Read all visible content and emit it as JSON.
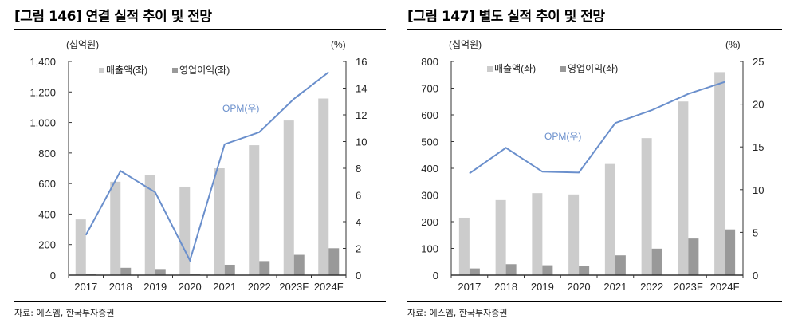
{
  "colors": {
    "revenue": "#cccccc",
    "operating_profit": "#999999",
    "opm": "#6a8fcc",
    "axis": "#333333"
  },
  "chart_data": [
    {
      "type": "bar+line",
      "title": "[그림 146] 연결 실적 추이 및 전망",
      "source": "자료: 에스엠, 한국투자증권",
      "left_unit": "(십억원)",
      "right_unit": "(%)",
      "categories": [
        "2017",
        "2018",
        "2019",
        "2020",
        "2021",
        "2022",
        "2023F",
        "2024F"
      ],
      "left_ylim": [
        0,
        1400
      ],
      "left_ticks": [
        "0",
        "200",
        "400",
        "600",
        "800",
        "1,000",
        "1,200",
        "1,400"
      ],
      "right_ylim": [
        0,
        16
      ],
      "right_ticks": [
        "0",
        "2",
        "4",
        "6",
        "8",
        "10",
        "12",
        "14",
        "16"
      ],
      "legend": [
        "매출액(좌)",
        "영업이익(좌)"
      ],
      "legend_position": "top",
      "grid": false,
      "series": [
        {
          "name": "매출액(좌)",
          "type": "bar",
          "axis": "left",
          "values": [
            365,
            612,
            657,
            580,
            700,
            851,
            1013,
            1157
          ]
        },
        {
          "name": "영업이익(좌)",
          "type": "bar",
          "axis": "left",
          "values": [
            10,
            48,
            40,
            6,
            68,
            92,
            133,
            176
          ]
        },
        {
          "name": "OPM(우)",
          "type": "line",
          "axis": "right",
          "values": [
            3.0,
            7.8,
            6.2,
            1.1,
            9.8,
            10.7,
            13.2,
            15.2
          ]
        }
      ]
    },
    {
      "type": "bar+line",
      "title": "[그림 147] 별도 실적 추이 및 전망",
      "source": "자료: 에스엠, 한국투자증권",
      "left_unit": "(십억원)",
      "right_unit": "(%)",
      "categories": [
        "2017",
        "2018",
        "2019",
        "2020",
        "2021",
        "2022",
        "2023F",
        "2024F"
      ],
      "left_ylim": [
        0,
        800
      ],
      "left_ticks": [
        "0",
        "100",
        "200",
        "300",
        "400",
        "500",
        "600",
        "700",
        "800"
      ],
      "right_ylim": [
        0,
        25
      ],
      "right_ticks": [
        "0",
        "5",
        "10",
        "15",
        "20",
        "25"
      ],
      "legend": [
        "매출액(좌)",
        "영업이익(좌)"
      ],
      "legend_position": "top",
      "grid": false,
      "series": [
        {
          "name": "매출액(좌)",
          "type": "bar",
          "axis": "left",
          "values": [
            215,
            281,
            307,
            302,
            416,
            513,
            650,
            760
          ]
        },
        {
          "name": "영업이익(좌)",
          "type": "bar",
          "axis": "left",
          "values": [
            25,
            41,
            37,
            35,
            74,
            99,
            137,
            171
          ]
        },
        {
          "name": "OPM(우)",
          "type": "line",
          "axis": "right",
          "values": [
            11.9,
            14.9,
            12.1,
            12.0,
            17.8,
            19.3,
            21.2,
            22.6
          ]
        }
      ]
    }
  ]
}
